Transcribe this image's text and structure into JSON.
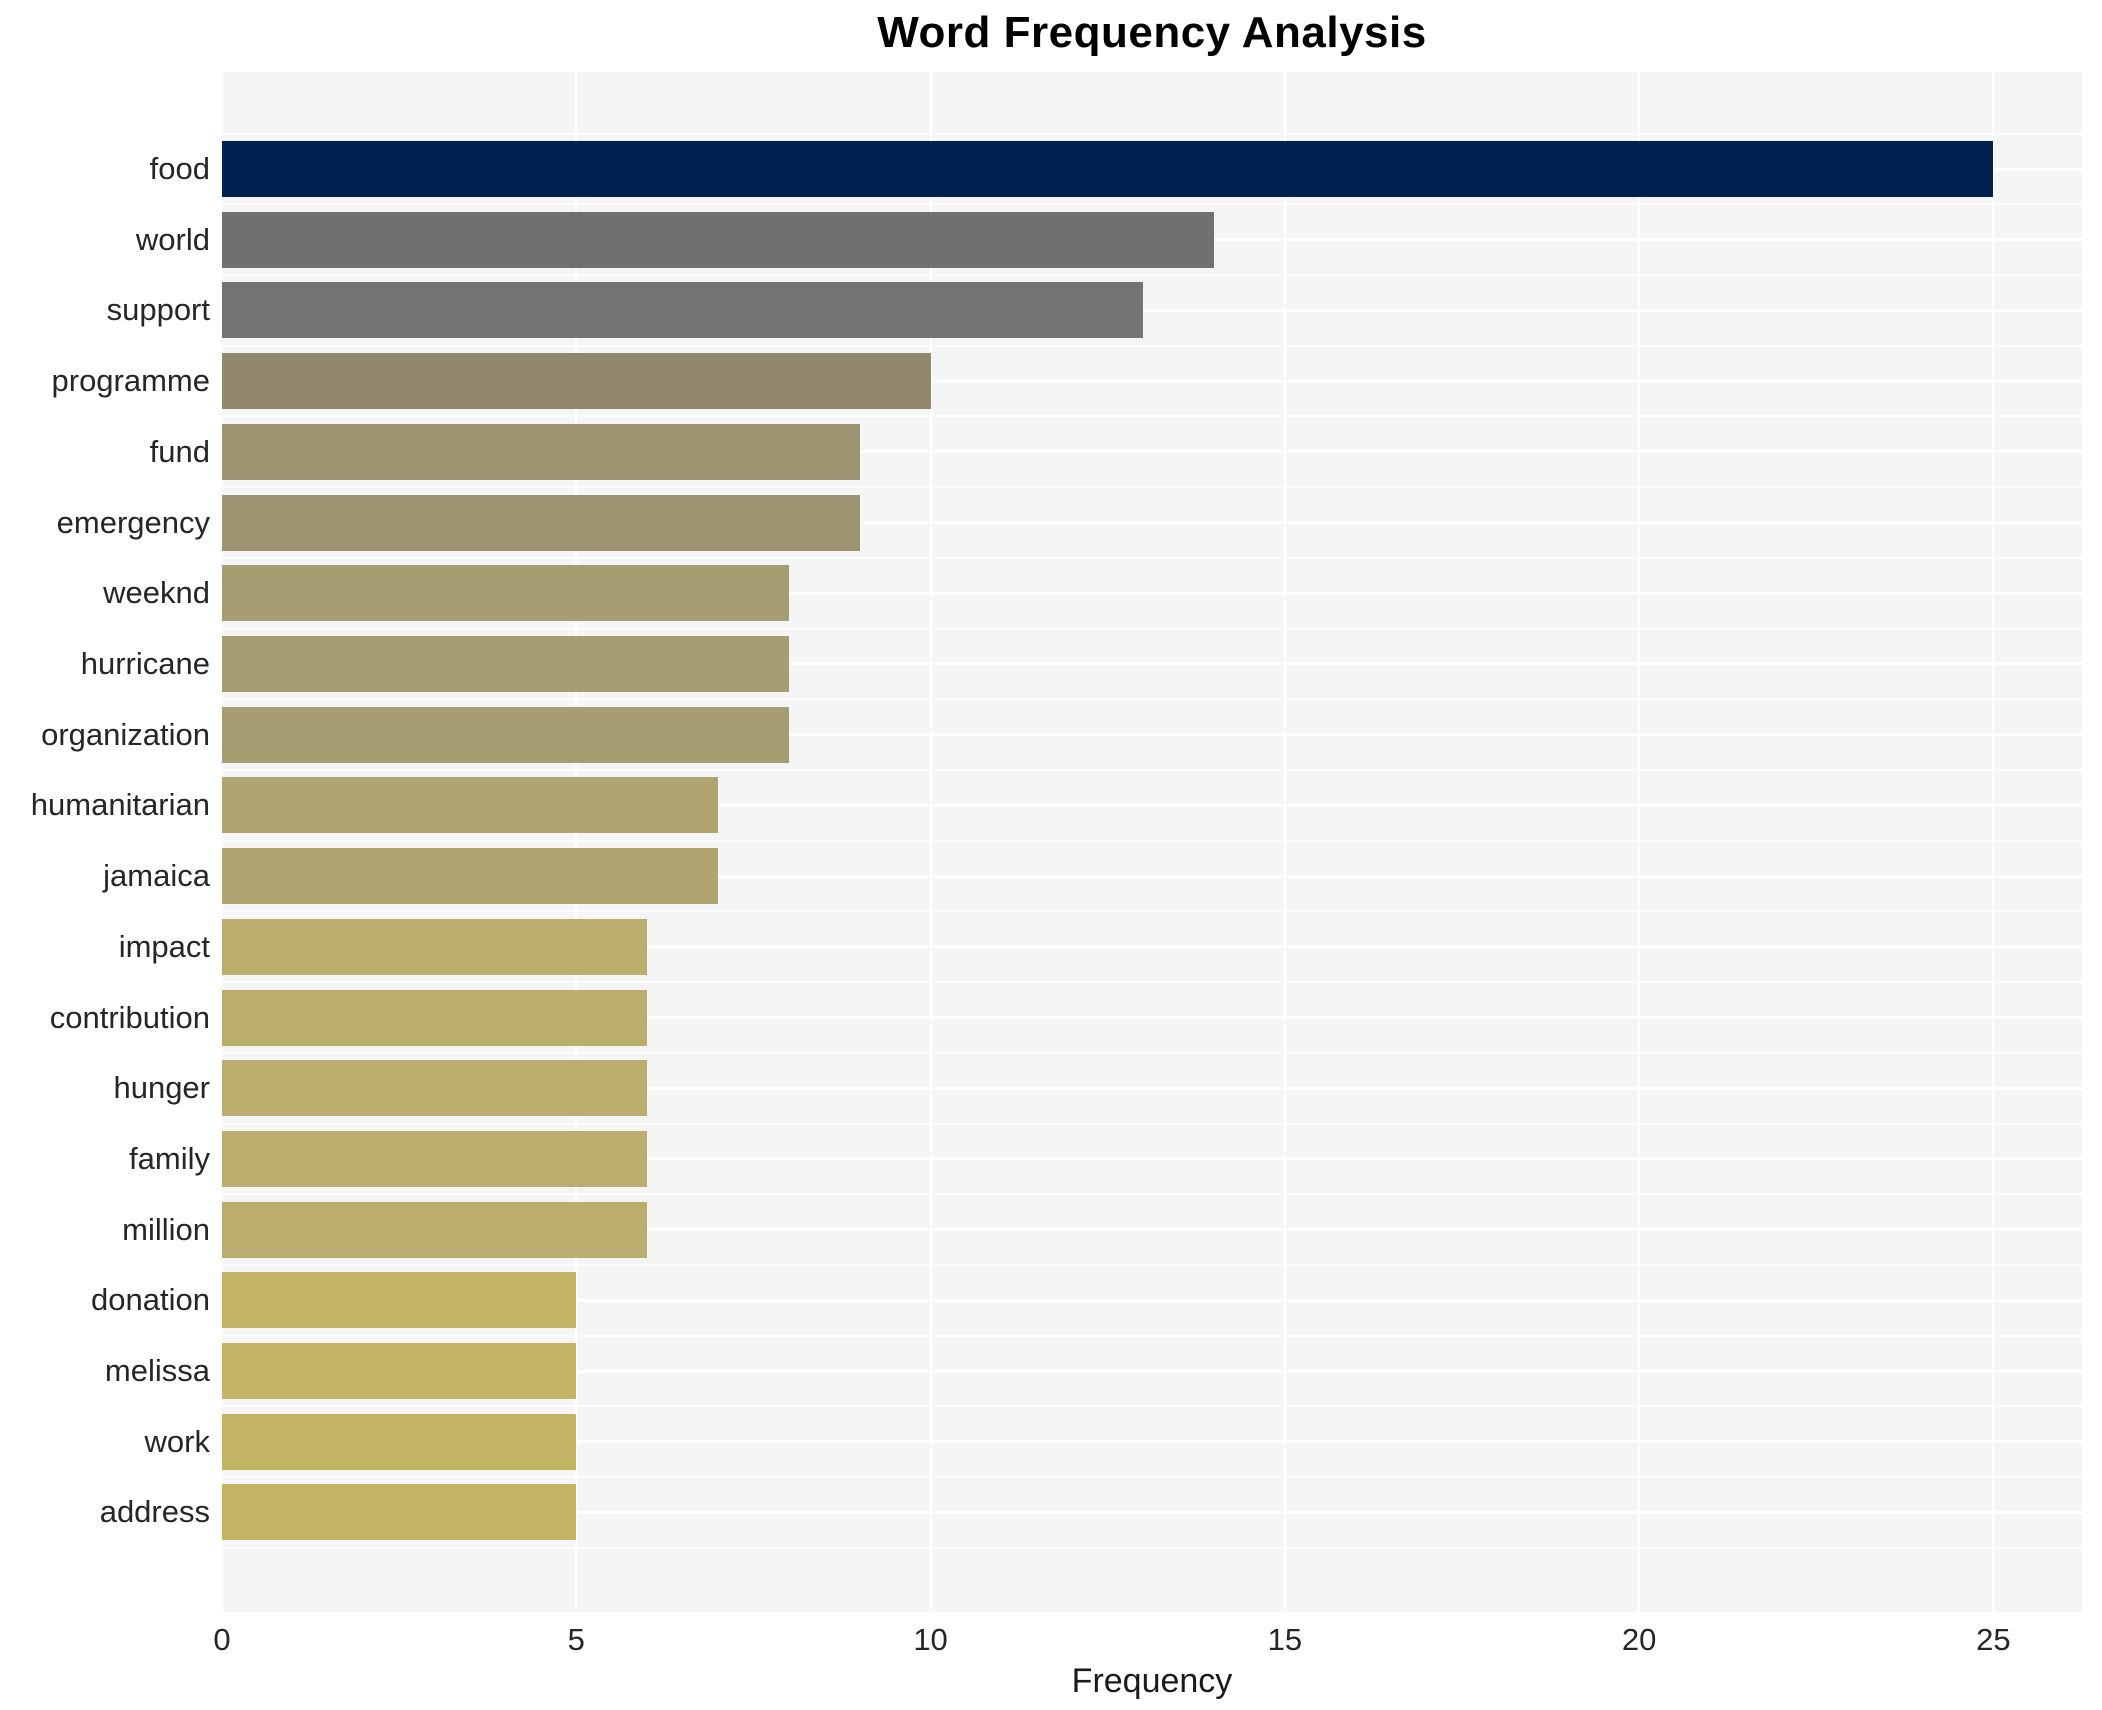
{
  "title": "Word Frequency Analysis",
  "chart_data": {
    "type": "bar",
    "orientation": "horizontal",
    "title": "Word Frequency Analysis",
    "xlabel": "Frequency",
    "ylabel": "",
    "categories": [
      "food",
      "world",
      "support",
      "programme",
      "fund",
      "emergency",
      "weeknd",
      "hurricane",
      "organization",
      "humanitarian",
      "jamaica",
      "impact",
      "contribution",
      "hunger",
      "family",
      "million",
      "donation",
      "melissa",
      "work",
      "address"
    ],
    "values": [
      25,
      14,
      13,
      10,
      9,
      9,
      8,
      8,
      8,
      7,
      7,
      6,
      6,
      6,
      6,
      6,
      5,
      5,
      5,
      5
    ],
    "bar_colors": [
      "#012250",
      "#6e7072",
      "#727375",
      "#92896d",
      "#9c9370",
      "#9c9370",
      "#a79d72",
      "#a79d72",
      "#a79d72",
      "#b0a471",
      "#b0a471",
      "#bbad6d",
      "#bbad6d",
      "#bbad6d",
      "#bbad6d",
      "#bbad6d",
      "#c3b365",
      "#c3b365",
      "#c3b365",
      "#c3b365"
    ],
    "x_ticks": [
      0,
      5,
      10,
      15,
      20,
      25
    ],
    "xlim": [
      0,
      26.25
    ],
    "grid": true,
    "legend": false,
    "panel_bg": "#f5f5f6",
    "figure_bg": "#ffffff",
    "gridline_color": "#ffffff",
    "text_color": "#262626"
  }
}
